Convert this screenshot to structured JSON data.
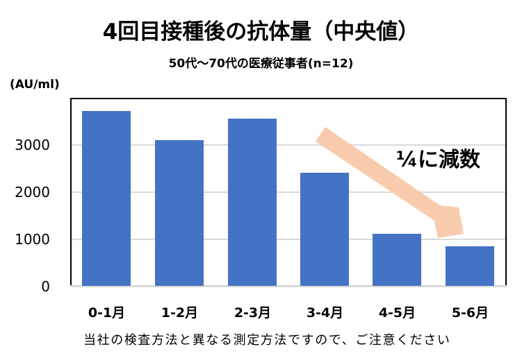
{
  "chart_data": {
    "type": "bar",
    "title": "4回目接種後の抗体量（中央値）",
    "subtitle": "50代〜70代の医療従事者(n=12)",
    "xlabel": "",
    "ylabel": "(AU/ml)",
    "categories": [
      "0-1月",
      "1-2月",
      "2-3月",
      "3-4月",
      "4-5月",
      "5-6月"
    ],
    "values": [
      3720,
      3100,
      3560,
      2410,
      1120,
      850
    ],
    "ylim": [
      0,
      4000
    ],
    "yticks": [
      0,
      1000,
      2000,
      3000
    ],
    "ytick_labels": [
      "0",
      "1000",
      "2000",
      "3000"
    ],
    "grid": true,
    "legend": null,
    "bar_color": "#4472C4",
    "annotations": [
      {
        "text": "¼に減数",
        "type": "text"
      },
      {
        "type": "arrow",
        "direction": "down-right",
        "from_category": "3-4月",
        "to_category": "5-6月",
        "color": "#F8CBAD"
      }
    ],
    "footnote": "当社の検査方法と異なる測定方法ですので、ご注意ください"
  },
  "header": {
    "title": "4回目接種後の抗体量（中央値）",
    "subtitle": "50代〜70代の医療従事者(n=12)"
  },
  "axis": {
    "unit_label": "(AU/ml)",
    "y_ticks": [
      {
        "label": "3000",
        "value": 3000
      },
      {
        "label": "2000",
        "value": 2000
      },
      {
        "label": "1000",
        "value": 1000
      },
      {
        "label": "0",
        "value": 0
      }
    ],
    "x_labels": [
      "0-1月",
      "1-2月",
      "2-3月",
      "3-4月",
      "4-5月",
      "5-6月"
    ]
  },
  "annotation": {
    "text": "¼に減数",
    "arrow_color": "#F8CBAD"
  },
  "colors": {
    "bar": "#4472C4",
    "arrow": "#F8CBAD",
    "gridline": "#D9D9D9",
    "frame": "#000000"
  },
  "footnote": "当社の検査方法と異なる測定方法ですので、ご注意ください"
}
